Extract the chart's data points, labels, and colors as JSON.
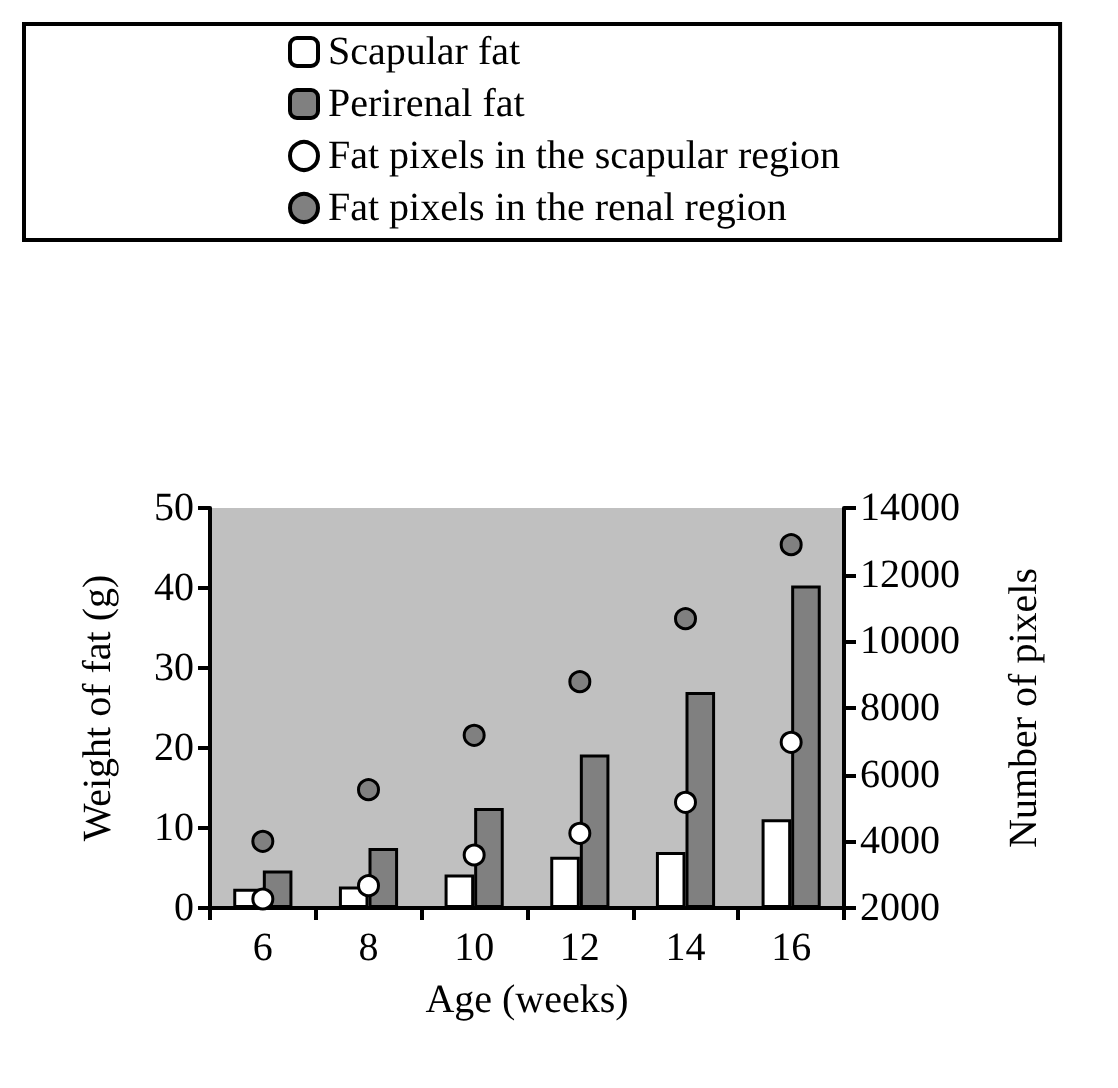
{
  "chart_data": {
    "type": "bar",
    "xlabel": "Age (weeks)",
    "ylabel": "Weight of fat (g)",
    "y2label": "Number of pixels",
    "categories": [
      "6",
      "8",
      "10",
      "12",
      "14",
      "16"
    ],
    "series": [
      {
        "name": "Scapular fat",
        "color": "#ffffff",
        "values": [
          2.4,
          2.7,
          4.2,
          6.4,
          7.0,
          11.1
        ]
      },
      {
        "name": "Perirenal fat",
        "color": "#808080",
        "values": [
          4.7,
          7.5,
          12.5,
          19.2,
          27.0,
          40.3
        ]
      },
      {
        "name": "Fat pixels in the scapular region",
        "type": "scatter",
        "axis": "y2",
        "color": "#ffffff",
        "values": [
          2270,
          2670,
          3590,
          4240,
          5170,
          6970
        ]
      },
      {
        "name": "Fat pixels in the renal region",
        "type": "scatter",
        "axis": "y2",
        "color": "#808080",
        "values": [
          4000,
          5550,
          7180,
          8790,
          10680,
          12900
        ]
      }
    ],
    "ylim": [
      0,
      50
    ],
    "yticks": [
      0,
      10,
      20,
      30,
      40,
      50
    ],
    "y2lim": [
      2000,
      14000
    ],
    "y2ticks": [
      2000,
      4000,
      6000,
      8000,
      10000,
      12000,
      14000
    ],
    "marker": "circle",
    "grid": false,
    "legend": "top"
  }
}
